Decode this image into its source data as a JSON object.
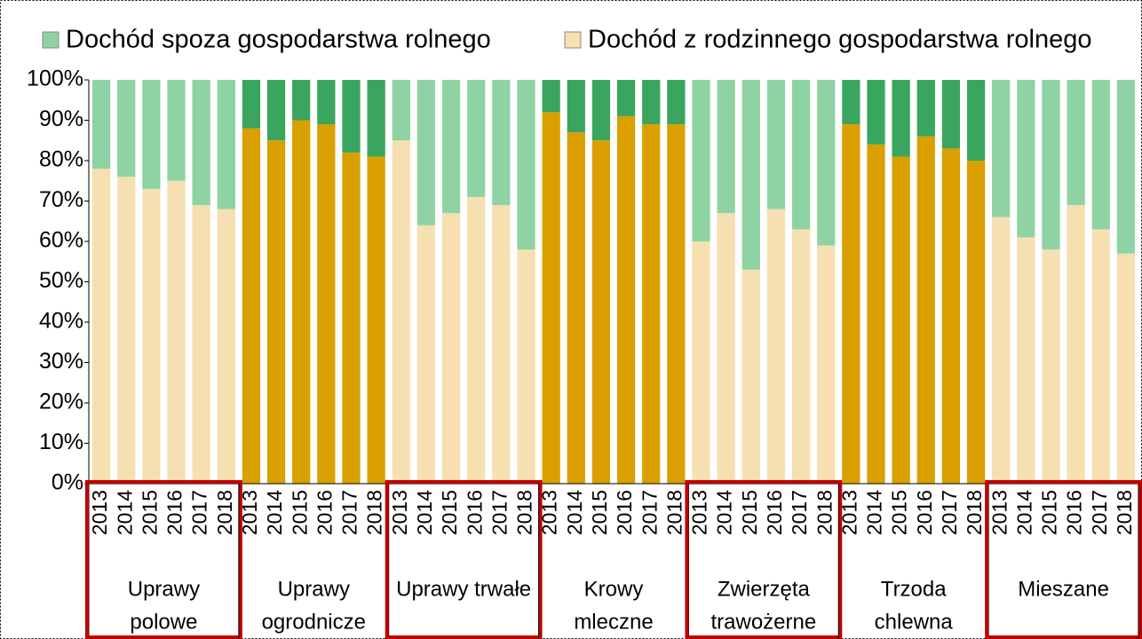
{
  "chart_data": {
    "type": "bar",
    "stacked": true,
    "categories": [
      "2013",
      "2014",
      "2015",
      "2016",
      "2017",
      "2018",
      "2013",
      "2014",
      "2015",
      "2016",
      "2017",
      "2018",
      "2013",
      "2014",
      "2015",
      "2016",
      "2017",
      "2018",
      "2013",
      "2014",
      "2015",
      "2016",
      "2017",
      "2018",
      "2013",
      "2014",
      "2015",
      "2016",
      "2017",
      "2018",
      "2013",
      "2014",
      "2015",
      "2016",
      "2017",
      "2018",
      "2013",
      "2014",
      "2015",
      "2016",
      "2017",
      "2018"
    ],
    "groups": [
      {
        "lines": [
          "Uprawy",
          "polowe"
        ],
        "size": 6,
        "style": "light",
        "highlighted": true
      },
      {
        "lines": [
          "Uprawy",
          "ogrodnicze"
        ],
        "size": 6,
        "style": "dark",
        "highlighted": false
      },
      {
        "lines": [
          "Uprawy trwałe"
        ],
        "size": 6,
        "style": "light",
        "highlighted": true
      },
      {
        "lines": [
          "Krowy",
          "mleczne"
        ],
        "size": 6,
        "style": "dark",
        "highlighted": false
      },
      {
        "lines": [
          "Zwierzęta",
          "trawożerne"
        ],
        "size": 6,
        "style": "light",
        "highlighted": true
      },
      {
        "lines": [
          "Trzoda",
          "chlewna"
        ],
        "size": 6,
        "style": "dark",
        "highlighted": false
      },
      {
        "lines": [
          "Mieszane"
        ],
        "size": 6,
        "style": "light",
        "highlighted": true
      }
    ],
    "series": [
      {
        "name": "Dochód spoza gospodarstwa rolnego",
        "color": "#8fd3a4",
        "dark_color": "#3aa55f",
        "values": [
          22,
          24,
          27,
          25,
          31,
          32,
          12,
          15,
          10,
          11,
          18,
          19,
          15,
          36,
          33,
          29,
          31,
          42,
          8,
          13,
          15,
          9,
          11,
          11,
          40,
          33,
          47,
          32,
          37,
          41,
          11,
          16,
          19,
          14,
          17,
          20,
          34,
          39,
          42,
          31,
          37,
          43
        ]
      },
      {
        "name": "Dochód z rodzinnego gospodarstwa rolnego",
        "color": "#f6dfb0",
        "dark_color": "#d9a000",
        "values": [
          78,
          76,
          73,
          75,
          69,
          68,
          88,
          85,
          90,
          89,
          82,
          81,
          85,
          64,
          67,
          71,
          69,
          58,
          92,
          87,
          85,
          91,
          89,
          89,
          60,
          67,
          53,
          68,
          63,
          59,
          89,
          84,
          81,
          86,
          83,
          80,
          66,
          61,
          58,
          69,
          63,
          57
        ]
      }
    ],
    "ylim": [
      0,
      100
    ],
    "yticks": [
      {
        "value": 0,
        "label": "0%"
      },
      {
        "value": 10,
        "label": "10%"
      },
      {
        "value": 20,
        "label": "20%"
      },
      {
        "value": 30,
        "label": "30%"
      },
      {
        "value": 40,
        "label": "40%"
      },
      {
        "value": 50,
        "label": "50%"
      },
      {
        "value": 60,
        "label": "60%"
      },
      {
        "value": 70,
        "label": "70%"
      },
      {
        "value": 80,
        "label": "80%"
      },
      {
        "value": 90,
        "label": "90%"
      },
      {
        "value": 100,
        "label": "100%"
      }
    ],
    "highlight_color": "#c00000"
  }
}
